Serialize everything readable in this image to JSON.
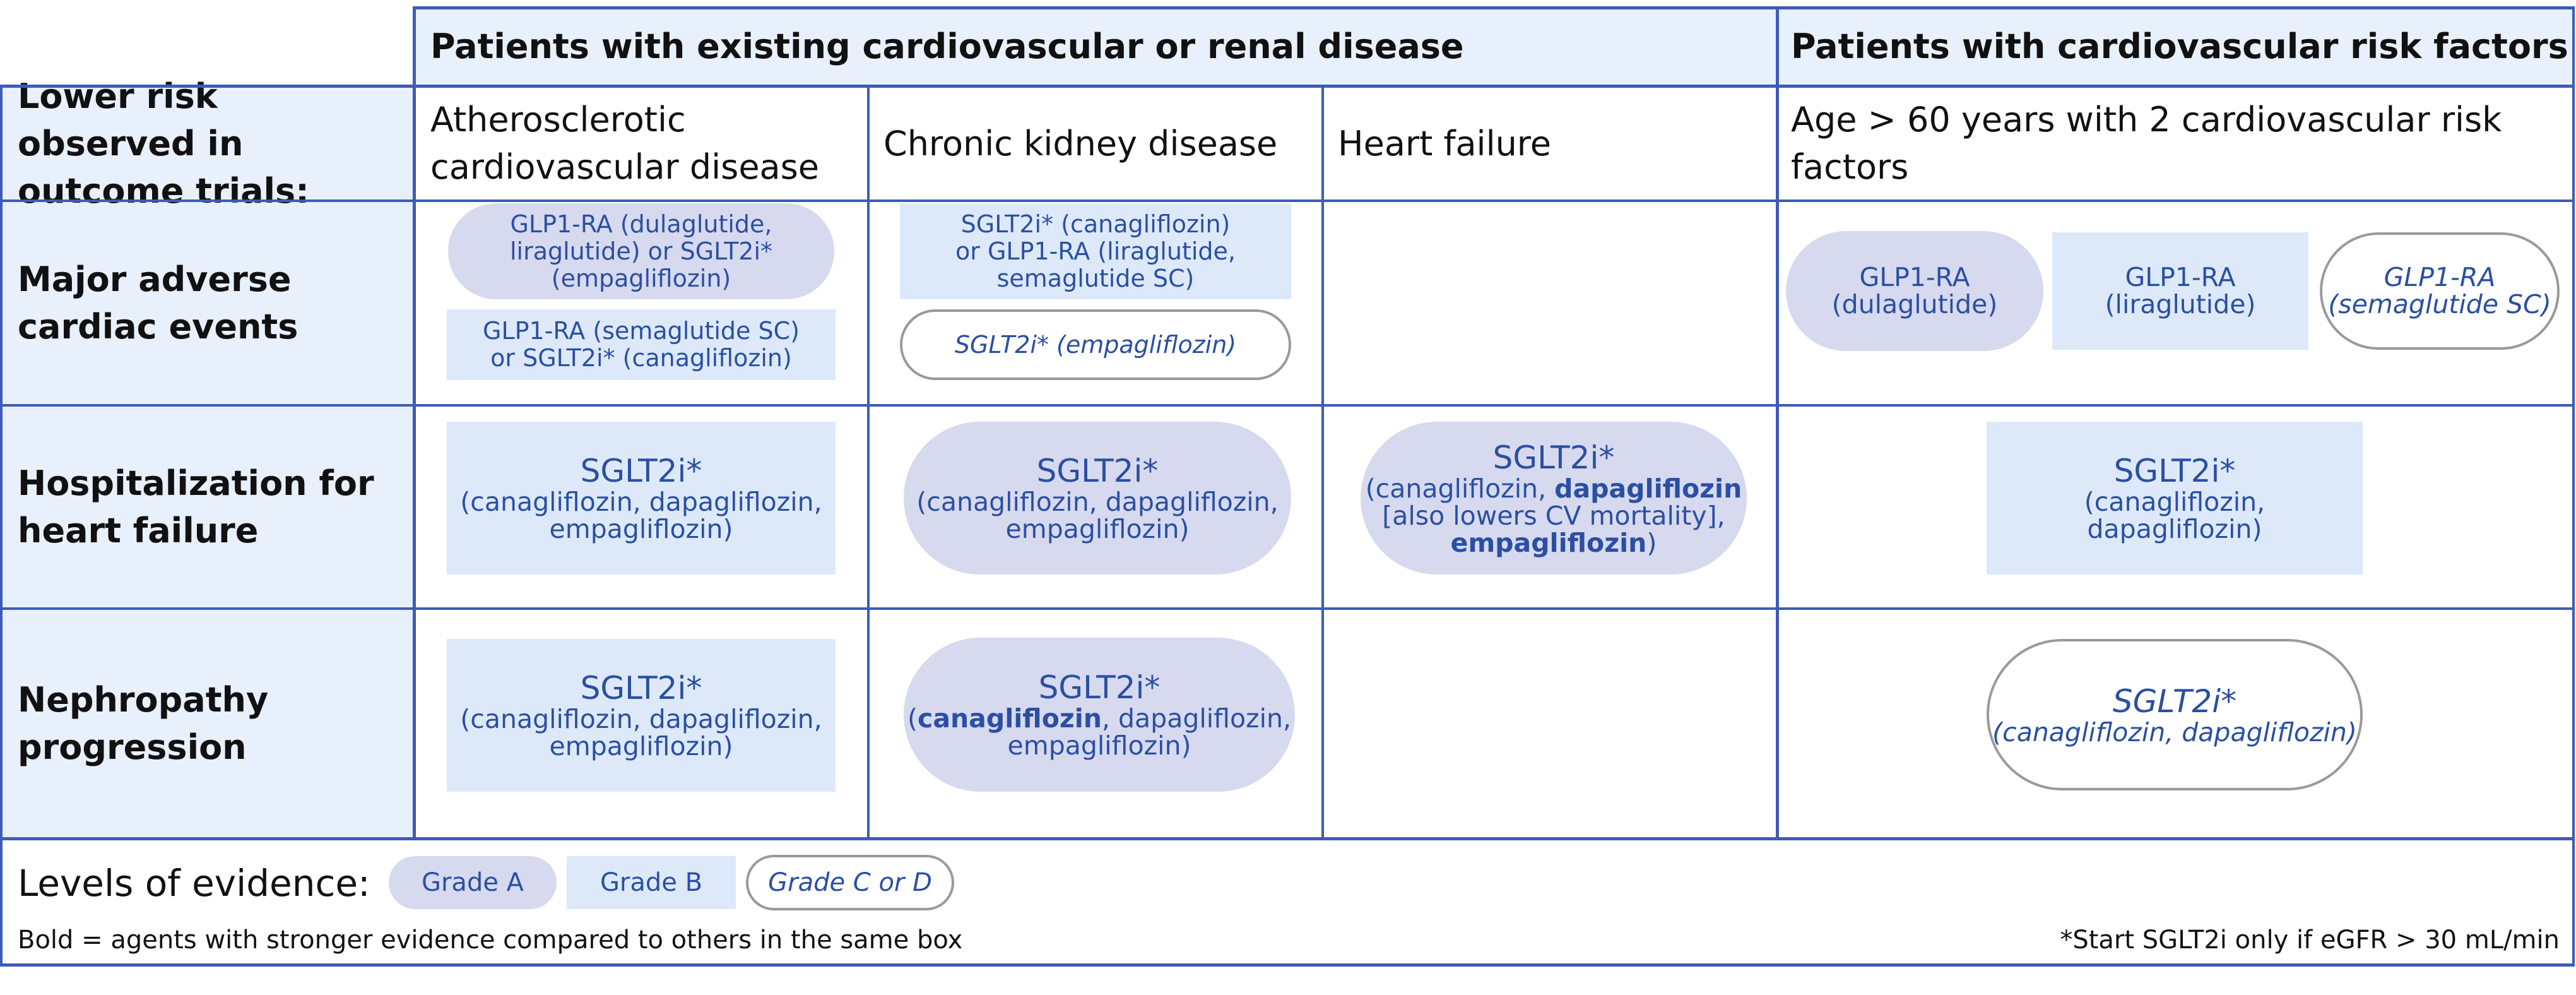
{
  "header": {
    "group1": "Patients with existing cardiovascular or renal disease",
    "group2": "Patients with cardiovascular risk factors"
  },
  "row_header": "Lower risk observed in outcome trials:",
  "columns": {
    "ascvd": "Atherosclerotic cardiovascular disease",
    "ckd": "Chronic kidney disease",
    "hf": "Heart failure",
    "age": "Age > 60 years with 2 cardiovascular risk factors"
  },
  "rows": {
    "mace": "Major adverse cardiac events",
    "hhf": "Hospitalization for heart failure",
    "nephro": "Nephropathy progression"
  },
  "cells": {
    "mace_ascvd_a": {
      "line1": "GLP1-RA (dulaglutide,",
      "line2": "liraglutide) or SGLT2i*",
      "line3": "(empagliflozin)"
    },
    "mace_ascvd_b": {
      "line1": "GLP1-RA (semaglutide SC)",
      "line2": "or SGLT2i* (canagliflozin)"
    },
    "mace_ckd_b": {
      "line1": "SGLT2i* (canagliflozin)",
      "line2": "or GLP1-RA (liraglutide,",
      "line3": "semaglutide SC)"
    },
    "mace_ckd_c": {
      "line1": "SGLT2i* (empagliflozin)"
    },
    "mace_age_a": {
      "line1": "GLP1-RA",
      "line2": "(dulaglutide)"
    },
    "mace_age_b": {
      "line1": "GLP1-RA",
      "line2": "(liraglutide)"
    },
    "mace_age_c": {
      "line1": "GLP1-RA",
      "line2": "(semaglutide SC)"
    },
    "hhf_ascvd": {
      "title": "SGLT2i*",
      "line2": "(canagliflozin, dapagliflozin,",
      "line3": "empagliflozin)"
    },
    "hhf_ckd": {
      "title": "SGLT2i*",
      "line2": "(canagliflozin, dapagliflozin,",
      "line3": "empagliflozin)"
    },
    "hhf_hf": {
      "title": "SGLT2i*",
      "l2_pre": "(canagliflozin, ",
      "l2_bold": "dapagliflozin",
      "line3": "[also lowers CV mortality],",
      "l4_bold": "empagliflozin",
      "l4_post": ")"
    },
    "hhf_age": {
      "title": "SGLT2i*",
      "line2": "(canagliflozin,",
      "line3": "dapagliflozin)"
    },
    "nephro_ascvd": {
      "title": "SGLT2i*",
      "line2": "(canagliflozin, dapagliflozin,",
      "line3": "empagliflozin)"
    },
    "nephro_ckd": {
      "title": "SGLT2i*",
      "l2_pre": "(",
      "l2_bold": "canagliflozin",
      "l2_post": ", dapagliflozin,",
      "line3": "empagliflozin)"
    },
    "nephro_age": {
      "title": "SGLT2i*",
      "line2": "(canagliflozin, dapagliflozin)"
    }
  },
  "legend": {
    "label": "Levels of evidence:",
    "grade_a": "Grade A",
    "grade_b": "Grade B",
    "grade_c": "Grade C or D"
  },
  "footnotes": {
    "bold_note": "Bold = agents with stronger evidence compared to others in the same box",
    "sglt2_note": "*Start SGLT2i only if eGFR > 30 mL/min"
  },
  "colors": {
    "grid_line": "#3d5bb8",
    "header_bg": "#e8f0fb",
    "grade_a": "#d7d9ee",
    "grade_b": "#dde9f9",
    "grade_c_border": "#9a9a9a",
    "text_blue": "#2a4fa3"
  }
}
